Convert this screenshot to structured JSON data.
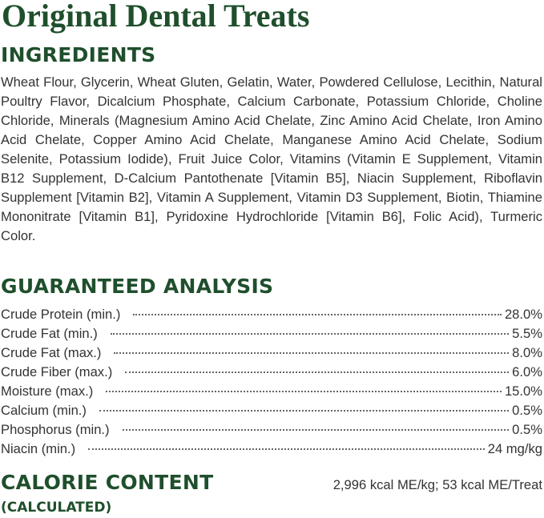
{
  "header": {
    "title": "Original Dental Treats"
  },
  "ingredients": {
    "heading": "INGREDIENTS",
    "text": "Wheat Flour, Glycerin, Wheat Gluten, Gelatin, Water, Powdered Cellulose, Lecithin, Natural Poultry Flavor, Dicalcium Phosphate, Calcium Carbonate, Potassium Chloride, Choline Chloride, Minerals (Magnesium Amino Acid Chelate, Zinc Amino Acid Chelate, Iron Amino Acid Chelate, Copper Amino Acid Chelate, Manganese Amino Acid Chelate, Sodium Selenite, Potassium Iodide), Fruit Juice Color, Vitamins (Vitamin E Supplement, Vitamin B12 Supplement, D-Calcium Pantothenate [Vitamin B5], Niacin Supplement, Riboflavin Supplement [Vitamin B2], Vitamin A Supplement, Vitamin D3 Supplement, Biotin, Thiamine Mononitrate [Vitamin B1], Pyridoxine Hydrochloride [Vitamin B6], Folic Acid), Turmeric Color."
  },
  "analysis": {
    "heading": "GUARANTEED ANALYSIS",
    "rows": [
      {
        "label": "Crude Protein (min.)",
        "value": "28.0%"
      },
      {
        "label": "Crude Fat (min.)",
        "value": "5.5%"
      },
      {
        "label": "Crude Fat (max.)",
        "value": "8.0%"
      },
      {
        "label": "Crude Fiber (max.)",
        "value": "6.0%"
      },
      {
        "label": "Moisture (max.)",
        "value": "15.0%"
      },
      {
        "label": "Calcium (min.)",
        "value": "0.5%"
      },
      {
        "label": "Phosphorus (min.)",
        "value": "0.5%"
      },
      {
        "label": "Niacin (min.)",
        "value": "24 mg/kg"
      }
    ]
  },
  "calorie": {
    "heading": "CALORIE CONTENT",
    "subheading": "(CALCULATED)",
    "value": "2,996 kcal ME/kg; 53 kcal ME/Treat"
  }
}
